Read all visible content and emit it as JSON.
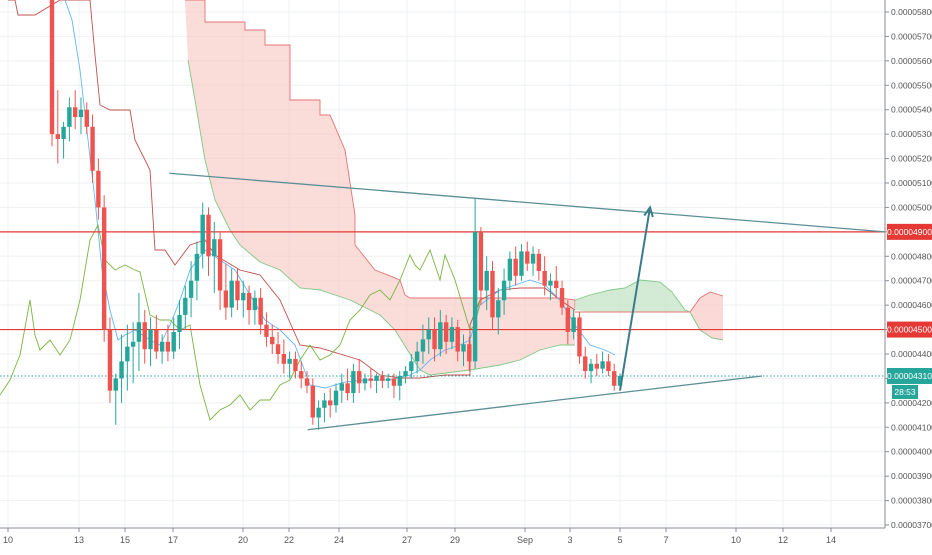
{
  "chart_data": {
    "type": "candlestick",
    "price_axis": {
      "ticks": [
        "0.00005800",
        "0.00005700",
        "0.00005600",
        "0.00005500",
        "0.00005400",
        "0.00005300",
        "0.00005200",
        "0.00005100",
        "0.00005000",
        "0.00004900",
        "0.00004800",
        "0.00004700",
        "0.00004600",
        "0.00004500",
        "0.00004400",
        "0.00004300",
        "0.00004200",
        "0.00004100",
        "0.00004000",
        "0.00003900",
        "0.00003800",
        "0.00003700"
      ],
      "ylim": [
        3.68e-05,
        5.85e-05
      ]
    },
    "time_axis": {
      "ticks": [
        "10",
        "13",
        "15",
        "17",
        "20",
        "22",
        "24",
        "27",
        "29",
        "Sep",
        "3",
        "5",
        "7",
        "10",
        "12",
        "14"
      ]
    },
    "price_labels": {
      "resistance_upper": "0.00004900",
      "resistance_lower": "0.00004500",
      "last_price": "0.00004310",
      "countdown": "28:53"
    },
    "horizontal_levels": [
      4.9e-05,
      4.5e-05
    ],
    "last_price_value": 4.31e-05,
    "triangle_lines": [
      {
        "from": {
          "x": "Aug 17",
          "y": 5.14e-05
        },
        "to": {
          "x": "Sep 15",
          "y": 4.9e-05
        }
      },
      {
        "from": {
          "x": "Aug 23",
          "y": 4.09e-05
        },
        "to": {
          "x": "Sep 11",
          "y": 4.31e-05
        }
      }
    ],
    "projection_arrow": {
      "from": {
        "x": "Sep 5",
        "y": 4.25e-05
      },
      "to": {
        "x": "Sep 6",
        "y": 5e-05
      }
    },
    "candles": [
      {
        "x": "Aug 12",
        "o": 6e-05,
        "h": 6e-05,
        "l": 5.25e-05,
        "c": 5.3e-05
      },
      {
        "x": "Aug 12",
        "o": 5.3e-05,
        "h": 5.48e-05,
        "l": 5.18e-05,
        "c": 5.28e-05
      },
      {
        "x": "Aug 12",
        "o": 5.28e-05,
        "h": 5.35e-05,
        "l": 5.2e-05,
        "c": 5.33e-05
      },
      {
        "x": "Aug 12",
        "o": 5.33e-05,
        "h": 5.45e-05,
        "l": 5.27e-05,
        "c": 5.41e-05
      },
      {
        "x": "Aug 13",
        "o": 5.41e-05,
        "h": 5.48e-05,
        "l": 5.32e-05,
        "c": 5.37e-05
      },
      {
        "x": "Aug 13",
        "o": 5.37e-05,
        "h": 5.45e-05,
        "l": 5.3e-05,
        "c": 5.4e-05
      },
      {
        "x": "Aug 13",
        "o": 5.4e-05,
        "h": 5.43e-05,
        "l": 5.3e-05,
        "c": 5.33e-05
      },
      {
        "x": "Aug 13",
        "o": 5.33e-05,
        "h": 5.38e-05,
        "l": 5.1e-05,
        "c": 5.15e-05
      },
      {
        "x": "Aug 13",
        "o": 5.15e-05,
        "h": 5.2e-05,
        "l": 4.95e-05,
        "c": 5e-05
      },
      {
        "x": "Aug 14",
        "o": 5e-05,
        "h": 5.05e-05,
        "l": 4.45e-05,
        "c": 4.5e-05
      },
      {
        "x": "Aug 14",
        "o": 4.5e-05,
        "h": 4.55e-05,
        "l": 4.2e-05,
        "c": 4.25e-05
      },
      {
        "x": "Aug 14",
        "o": 4.25e-05,
        "h": 4.32e-05,
        "l": 4.11e-05,
        "c": 4.3e-05
      },
      {
        "x": "Aug 14",
        "o": 4.3e-05,
        "h": 4.48e-05,
        "l": 4.2e-05,
        "c": 4.37e-05
      },
      {
        "x": "Aug 14",
        "o": 4.37e-05,
        "h": 4.52e-05,
        "l": 4.25e-05,
        "c": 4.43e-05
      },
      {
        "x": "Aug 15",
        "o": 4.43e-05,
        "h": 4.53e-05,
        "l": 4.28e-05,
        "c": 4.45e-05
      },
      {
        "x": "Aug 15",
        "o": 4.45e-05,
        "h": 4.65e-05,
        "l": 4.33e-05,
        "c": 4.53e-05
      },
      {
        "x": "Aug 15",
        "o": 4.53e-05,
        "h": 4.58e-05,
        "l": 4.36e-05,
        "c": 4.42e-05
      },
      {
        "x": "Aug 15",
        "o": 4.42e-05,
        "h": 4.55e-05,
        "l": 4.35e-05,
        "c": 4.5e-05
      },
      {
        "x": "Aug 16",
        "o": 4.5e-05,
        "h": 4.56e-05,
        "l": 4.38e-05,
        "c": 4.41e-05
      },
      {
        "x": "Aug 16",
        "o": 4.41e-05,
        "h": 4.48e-05,
        "l": 4.36e-05,
        "c": 4.45e-05
      },
      {
        "x": "Aug 16",
        "o": 4.45e-05,
        "h": 4.52e-05,
        "l": 4.37e-05,
        "c": 4.41e-05
      },
      {
        "x": "Aug 16",
        "o": 4.41e-05,
        "h": 4.55e-05,
        "l": 4.38e-05,
        "c": 4.49e-05
      },
      {
        "x": "Aug 17",
        "o": 4.49e-05,
        "h": 4.62e-05,
        "l": 4.42e-05,
        "c": 4.56e-05
      },
      {
        "x": "Aug 17",
        "o": 4.56e-05,
        "h": 4.68e-05,
        "l": 4.5e-05,
        "c": 4.63e-05
      },
      {
        "x": "Aug 17",
        "o": 4.63e-05,
        "h": 4.78e-05,
        "l": 4.55e-05,
        "c": 4.7e-05
      },
      {
        "x": "Aug 17",
        "o": 4.7e-05,
        "h": 4.86e-05,
        "l": 4.62e-05,
        "c": 4.81e-05
      },
      {
        "x": "Aug 18",
        "o": 4.81e-05,
        "h": 5.02e-05,
        "l": 4.75e-05,
        "c": 4.97e-05
      },
      {
        "x": "Aug 18",
        "o": 4.97e-05,
        "h": 5e-05,
        "l": 4.72e-05,
        "c": 4.8e-05
      },
      {
        "x": "Aug 18",
        "o": 4.8e-05,
        "h": 4.94e-05,
        "l": 4.65e-05,
        "c": 4.87e-05
      },
      {
        "x": "Aug 18",
        "o": 4.87e-05,
        "h": 4.9e-05,
        "l": 4.58e-05,
        "c": 4.66e-05
      },
      {
        "x": "Aug 19",
        "o": 4.66e-05,
        "h": 4.77e-05,
        "l": 4.54e-05,
        "c": 4.59e-05
      },
      {
        "x": "Aug 19",
        "o": 4.59e-05,
        "h": 4.75e-05,
        "l": 4.55e-05,
        "c": 4.7e-05
      },
      {
        "x": "Aug 19",
        "o": 4.7e-05,
        "h": 4.75e-05,
        "l": 4.58e-05,
        "c": 4.62e-05
      },
      {
        "x": "Aug 19",
        "o": 4.62e-05,
        "h": 4.7e-05,
        "l": 4.55e-05,
        "c": 4.65e-05
      },
      {
        "x": "Aug 20",
        "o": 4.65e-05,
        "h": 4.68e-05,
        "l": 4.52e-05,
        "c": 4.58e-05
      },
      {
        "x": "Aug 20",
        "o": 4.58e-05,
        "h": 4.66e-05,
        "l": 4.52e-05,
        "c": 4.63e-05
      },
      {
        "x": "Aug 20",
        "o": 4.63e-05,
        "h": 4.67e-05,
        "l": 4.48e-05,
        "c": 4.52e-05
      },
      {
        "x": "Aug 20",
        "o": 4.52e-05,
        "h": 4.57e-05,
        "l": 4.43e-05,
        "c": 4.47e-05
      },
      {
        "x": "Aug 21",
        "o": 4.47e-05,
        "h": 4.52e-05,
        "l": 4.4e-05,
        "c": 4.44e-05
      },
      {
        "x": "Aug 21",
        "o": 4.44e-05,
        "h": 4.49e-05,
        "l": 4.36e-05,
        "c": 4.4e-05
      },
      {
        "x": "Aug 21",
        "o": 4.4e-05,
        "h": 4.46e-05,
        "l": 4.32e-05,
        "c": 4.36e-05
      },
      {
        "x": "Aug 21",
        "o": 4.36e-05,
        "h": 4.41e-05,
        "l": 4.3e-05,
        "c": 4.38e-05
      },
      {
        "x": "Aug 22",
        "o": 4.38e-05,
        "h": 4.41e-05,
        "l": 4.3e-05,
        "c": 4.33e-05
      },
      {
        "x": "Aug 22",
        "o": 4.33e-05,
        "h": 4.37e-05,
        "l": 4.26e-05,
        "c": 4.3e-05
      },
      {
        "x": "Aug 22",
        "o": 4.3e-05,
        "h": 4.33e-05,
        "l": 4.24e-05,
        "c": 4.27e-05
      },
      {
        "x": "Aug 23",
        "o": 4.27e-05,
        "h": 4.3e-05,
        "l": 4.11e-05,
        "c": 4.14e-05
      },
      {
        "x": "Aug 23",
        "o": 4.14e-05,
        "h": 4.21e-05,
        "l": 4.09e-05,
        "c": 4.18e-05
      },
      {
        "x": "Aug 23",
        "o": 4.18e-05,
        "h": 4.24e-05,
        "l": 4.12e-05,
        "c": 4.21e-05
      },
      {
        "x": "Aug 23",
        "o": 4.21e-05,
        "h": 4.26e-05,
        "l": 4.14e-05,
        "c": 4.19e-05
      },
      {
        "x": "Aug 24",
        "o": 4.19e-05,
        "h": 4.28e-05,
        "l": 4.16e-05,
        "c": 4.25e-05
      },
      {
        "x": "Aug 24",
        "o": 4.25e-05,
        "h": 4.32e-05,
        "l": 4.2e-05,
        "c": 4.28e-05
      },
      {
        "x": "Aug 24",
        "o": 4.28e-05,
        "h": 4.34e-05,
        "l": 4.21e-05,
        "c": 4.24e-05
      },
      {
        "x": "Aug 24",
        "o": 4.24e-05,
        "h": 4.36e-05,
        "l": 4.2e-05,
        "c": 4.33e-05
      },
      {
        "x": "Aug 25",
        "o": 4.33e-05,
        "h": 4.38e-05,
        "l": 4.24e-05,
        "c": 4.28e-05
      },
      {
        "x": "Aug 25",
        "o": 4.28e-05,
        "h": 4.32e-05,
        "l": 4.25e-05,
        "c": 4.3e-05
      },
      {
        "x": "Aug 25",
        "o": 4.3e-05,
        "h": 4.34e-05,
        "l": 4.26e-05,
        "c": 4.29e-05
      },
      {
        "x": "Aug 25",
        "o": 4.29e-05,
        "h": 4.32e-05,
        "l": 4.24e-05,
        "c": 4.31e-05
      },
      {
        "x": "Aug 26",
        "o": 4.31e-05,
        "h": 4.33e-05,
        "l": 4.26e-05,
        "c": 4.29e-05
      },
      {
        "x": "Aug 26",
        "o": 4.29e-05,
        "h": 4.32e-05,
        "l": 4.26e-05,
        "c": 4.3e-05
      },
      {
        "x": "Aug 26",
        "o": 4.3e-05,
        "h": 4.32e-05,
        "l": 4.22e-05,
        "c": 4.27e-05
      },
      {
        "x": "Aug 26",
        "o": 4.27e-05,
        "h": 4.33e-05,
        "l": 4.21e-05,
        "c": 4.31e-05
      },
      {
        "x": "Aug 27",
        "o": 4.31e-05,
        "h": 4.35e-05,
        "l": 4.28e-05,
        "c": 4.33e-05
      },
      {
        "x": "Aug 27",
        "o": 4.33e-05,
        "h": 4.4e-05,
        "l": 4.3e-05,
        "c": 4.37e-05
      },
      {
        "x": "Aug 27",
        "o": 4.37e-05,
        "h": 4.45e-05,
        "l": 4.32e-05,
        "c": 4.41e-05
      },
      {
        "x": "Aug 27",
        "o": 4.41e-05,
        "h": 4.52e-05,
        "l": 4.36e-05,
        "c": 4.46e-05
      },
      {
        "x": "Aug 28",
        "o": 4.46e-05,
        "h": 4.55e-05,
        "l": 4.4e-05,
        "c": 4.5e-05
      },
      {
        "x": "Aug 28",
        "o": 4.5e-05,
        "h": 4.55e-05,
        "l": 4.37e-05,
        "c": 4.42e-05
      },
      {
        "x": "Aug 28",
        "o": 4.42e-05,
        "h": 4.58e-05,
        "l": 4.39e-05,
        "c": 4.53e-05
      },
      {
        "x": "Aug 28",
        "o": 4.53e-05,
        "h": 4.56e-05,
        "l": 4.4e-05,
        "c": 4.45e-05
      },
      {
        "x": "Aug 29",
        "o": 4.45e-05,
        "h": 4.55e-05,
        "l": 4.42e-05,
        "c": 4.51e-05
      },
      {
        "x": "Aug 29",
        "o": 4.51e-05,
        "h": 4.54e-05,
        "l": 4.37e-05,
        "c": 4.41e-05
      },
      {
        "x": "Aug 29",
        "o": 4.41e-05,
        "h": 4.48e-05,
        "l": 4.35e-05,
        "c": 4.44e-05
      },
      {
        "x": "Aug 29",
        "o": 4.44e-05,
        "h": 4.47e-05,
        "l": 4.33e-05,
        "c": 4.37e-05
      },
      {
        "x": "Aug 30",
        "o": 4.37e-05,
        "h": 5.04e-05,
        "l": 4.34e-05,
        "c": 4.9e-05
      },
      {
        "x": "Aug 30",
        "o": 4.9e-05,
        "h": 4.92e-05,
        "l": 4.6e-05,
        "c": 4.66e-05
      },
      {
        "x": "Aug 30",
        "o": 4.66e-05,
        "h": 4.8e-05,
        "l": 4.58e-05,
        "c": 4.74e-05
      },
      {
        "x": "Aug 30",
        "o": 4.74e-05,
        "h": 4.78e-05,
        "l": 4.5e-05,
        "c": 4.55e-05
      },
      {
        "x": "Aug 31",
        "o": 4.55e-05,
        "h": 4.67e-05,
        "l": 4.48e-05,
        "c": 4.62e-05
      },
      {
        "x": "Aug 31",
        "o": 4.62e-05,
        "h": 4.75e-05,
        "l": 4.56e-05,
        "c": 4.7e-05
      },
      {
        "x": "Aug 31",
        "o": 4.7e-05,
        "h": 4.82e-05,
        "l": 4.66e-05,
        "c": 4.79e-05
      },
      {
        "x": "Aug 31",
        "o": 4.79e-05,
        "h": 4.84e-05,
        "l": 4.68e-05,
        "c": 4.72e-05
      },
      {
        "x": "Sep 1",
        "o": 4.72e-05,
        "h": 4.85e-05,
        "l": 4.7e-05,
        "c": 4.82e-05
      },
      {
        "x": "Sep 1",
        "o": 4.82e-05,
        "h": 4.86e-05,
        "l": 4.74e-05,
        "c": 4.77e-05
      },
      {
        "x": "Sep 1",
        "o": 4.77e-05,
        "h": 4.84e-05,
        "l": 4.72e-05,
        "c": 4.81e-05
      },
      {
        "x": "Sep 1",
        "o": 4.81e-05,
        "h": 4.83e-05,
        "l": 4.7e-05,
        "c": 4.74e-05
      },
      {
        "x": "Sep 2",
        "o": 4.74e-05,
        "h": 4.8e-05,
        "l": 4.64e-05,
        "c": 4.68e-05
      },
      {
        "x": "Sep 2",
        "o": 4.68e-05,
        "h": 4.73e-05,
        "l": 4.62e-05,
        "c": 4.7e-05
      },
      {
        "x": "Sep 2",
        "o": 4.7e-05,
        "h": 4.76e-05,
        "l": 4.63e-05,
        "c": 4.67e-05
      },
      {
        "x": "Sep 2",
        "o": 4.67e-05,
        "h": 4.7e-05,
        "l": 4.56e-05,
        "c": 4.59e-05
      },
      {
        "x": "Sep 3",
        "o": 4.59e-05,
        "h": 4.62e-05,
        "l": 4.44e-05,
        "c": 4.49e-05
      },
      {
        "x": "Sep 3",
        "o": 4.49e-05,
        "h": 4.58e-05,
        "l": 4.46e-05,
        "c": 4.55e-05
      },
      {
        "x": "Sep 3",
        "o": 4.55e-05,
        "h": 4.57e-05,
        "l": 4.36e-05,
        "c": 4.39e-05
      },
      {
        "x": "Sep 3",
        "o": 4.39e-05,
        "h": 4.43e-05,
        "l": 4.3e-05,
        "c": 4.33e-05
      },
      {
        "x": "Sep 4",
        "o": 4.33e-05,
        "h": 4.38e-05,
        "l": 4.28e-05,
        "c": 4.36e-05
      },
      {
        "x": "Sep 4",
        "o": 4.36e-05,
        "h": 4.4e-05,
        "l": 4.31e-05,
        "c": 4.34e-05
      },
      {
        "x": "Sep 4",
        "o": 4.34e-05,
        "h": 4.41e-05,
        "l": 4.32e-05,
        "c": 4.37e-05
      },
      {
        "x": "Sep 4",
        "o": 4.37e-05,
        "h": 4.4e-05,
        "l": 4.31e-05,
        "c": 4.33e-05
      },
      {
        "x": "Sep 5",
        "o": 4.33e-05,
        "h": 4.36e-05,
        "l": 4.25e-05,
        "c": 4.27e-05
      },
      {
        "x": "Sep 5",
        "o": 4.27e-05,
        "h": 4.32e-05,
        "l": 4.25e-05,
        "c": 4.31e-05
      }
    ],
    "colors": {
      "up": "#26a69a",
      "down": "#ef5350",
      "level": "#e53935",
      "trend": "#5b8f95",
      "last_price": "#26a69a",
      "tenkan": "#64b5f6",
      "kijun": "#c0504d",
      "lagging": "#7cb342",
      "cloud_bear": "#f8c9c5",
      "cloud_bull": "#c8e6c9",
      "grid": "#eef0f3",
      "axis_text": "#555555"
    }
  }
}
